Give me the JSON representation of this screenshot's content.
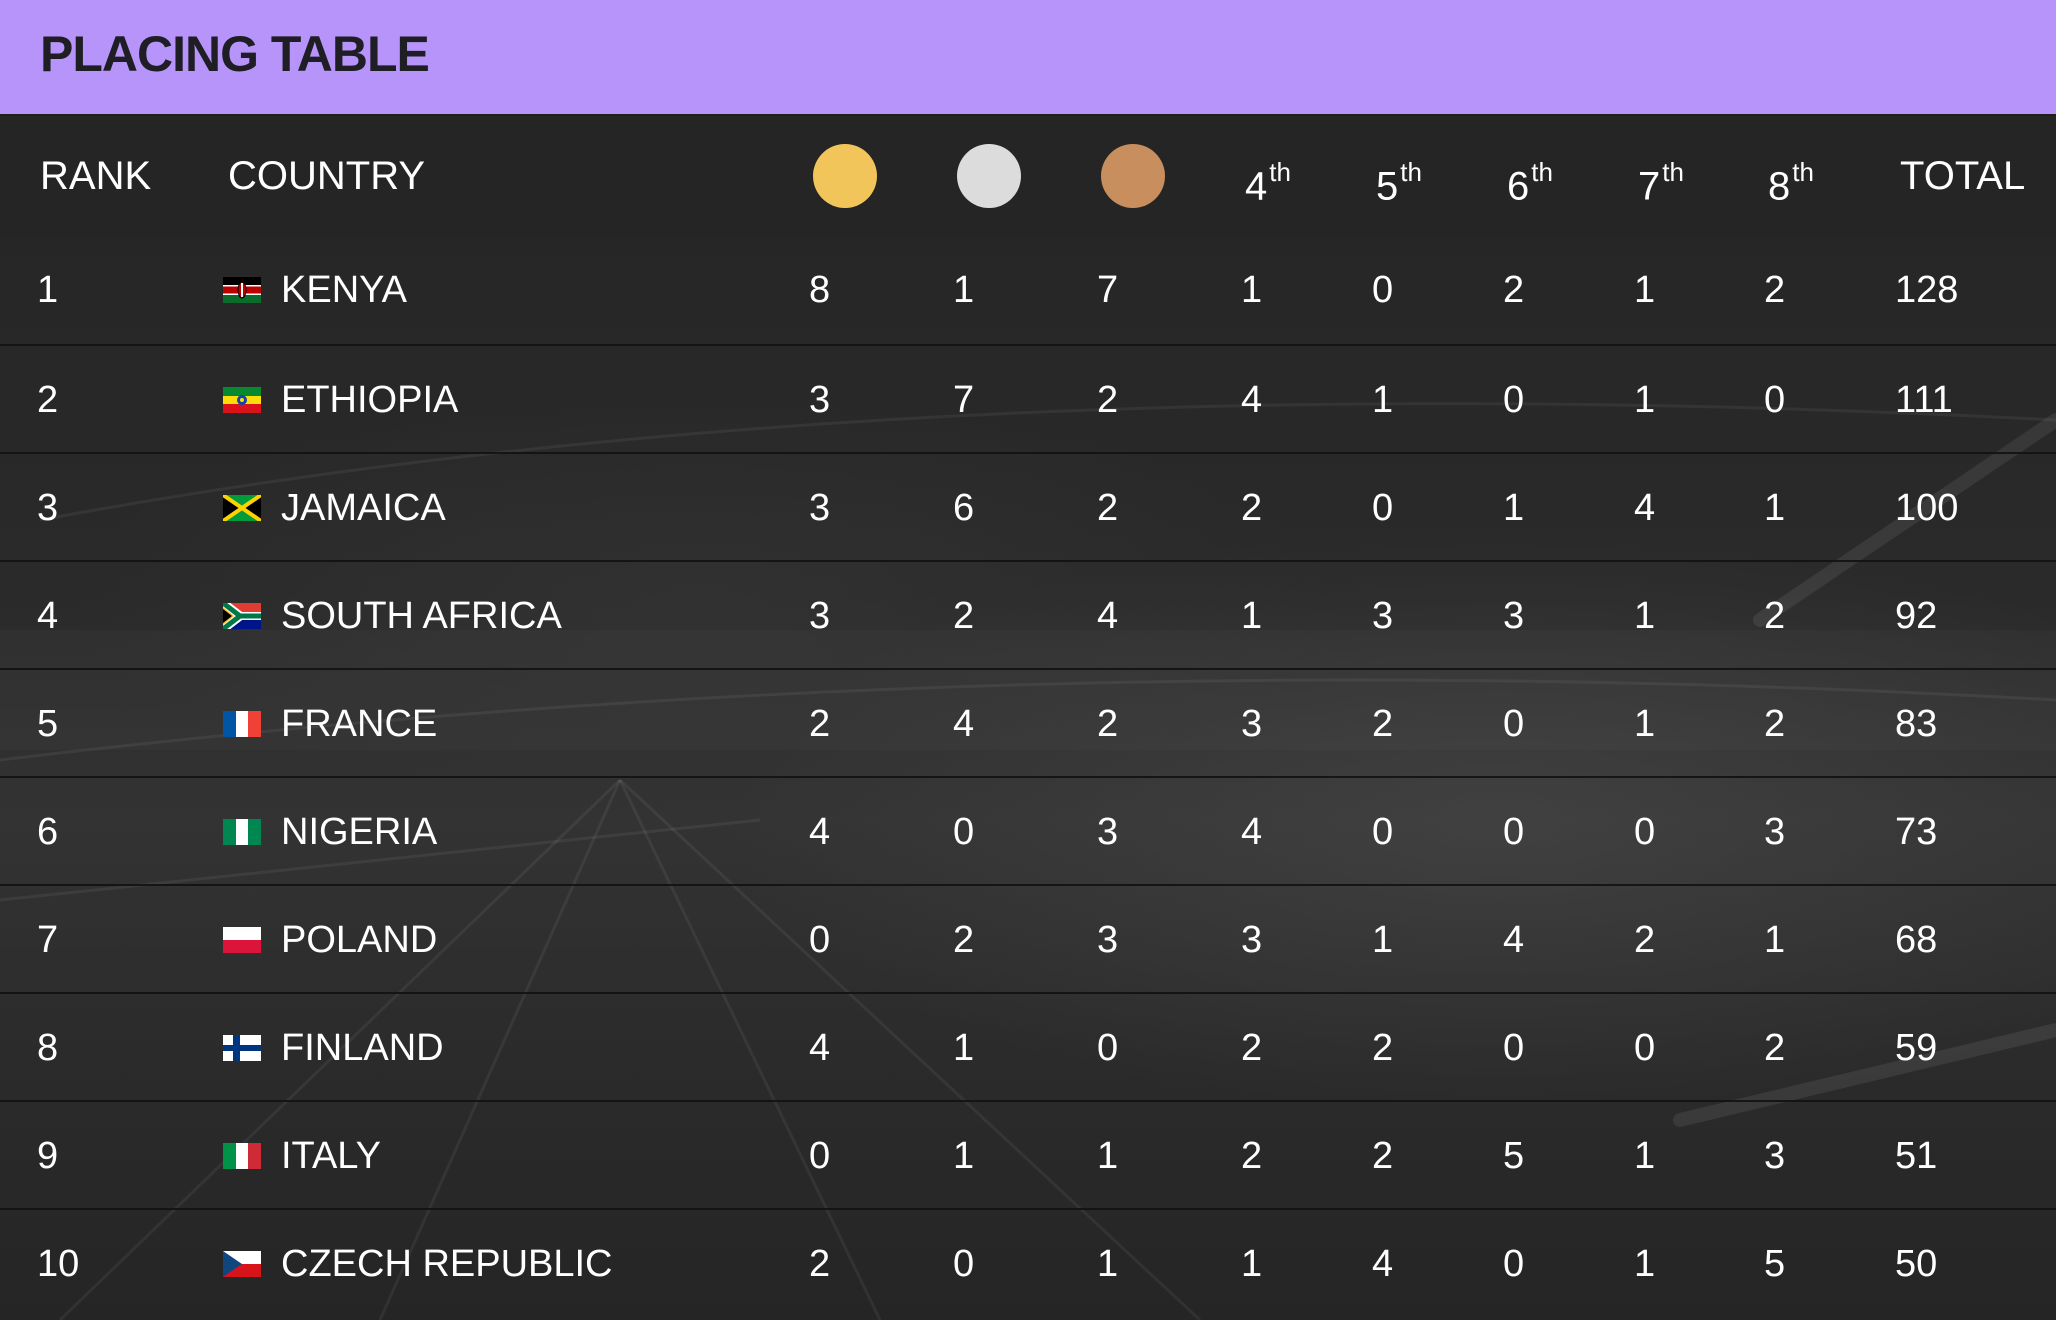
{
  "header": {
    "title": "PLACING TABLE",
    "background_color": "#b794fa"
  },
  "columns": {
    "rank": "RANK",
    "country": "COUNTRY",
    "gold_icon": "gold-medal-icon",
    "silver_icon": "silver-medal-icon",
    "bronze_icon": "bronze-medal-icon",
    "gold_color": "#f2c55b",
    "silver_color": "#dcdcdc",
    "bronze_color": "#c98e5d",
    "p4": {
      "num": "4",
      "suffix": "th"
    },
    "p5": {
      "num": "5",
      "suffix": "th"
    },
    "p6": {
      "num": "6",
      "suffix": "th"
    },
    "p7": {
      "num": "7",
      "suffix": "th"
    },
    "p8": {
      "num": "8",
      "suffix": "th"
    },
    "total": "TOTAL"
  },
  "rows": [
    {
      "rank": "1",
      "country": "KENYA",
      "flag": "kenya-flag-icon",
      "gold": "8",
      "silver": "1",
      "bronze": "7",
      "p4": "1",
      "p5": "0",
      "p6": "2",
      "p7": "1",
      "p8": "2",
      "total": "128"
    },
    {
      "rank": "2",
      "country": "ETHIOPIA",
      "flag": "ethiopia-flag-icon",
      "gold": "3",
      "silver": "7",
      "bronze": "2",
      "p4": "4",
      "p5": "1",
      "p6": "0",
      "p7": "1",
      "p8": "0",
      "total": "111"
    },
    {
      "rank": "3",
      "country": "JAMAICA",
      "flag": "jamaica-flag-icon",
      "gold": "3",
      "silver": "6",
      "bronze": "2",
      "p4": "2",
      "p5": "0",
      "p6": "1",
      "p7": "4",
      "p8": "1",
      "total": "100"
    },
    {
      "rank": "4",
      "country": "SOUTH AFRICA",
      "flag": "south-africa-flag-icon",
      "gold": "3",
      "silver": "2",
      "bronze": "4",
      "p4": "1",
      "p5": "3",
      "p6": "3",
      "p7": "1",
      "p8": "2",
      "total": "92"
    },
    {
      "rank": "5",
      "country": "FRANCE",
      "flag": "france-flag-icon",
      "gold": "2",
      "silver": "4",
      "bronze": "2",
      "p4": "3",
      "p5": "2",
      "p6": "0",
      "p7": "1",
      "p8": "2",
      "total": "83"
    },
    {
      "rank": "6",
      "country": "NIGERIA",
      "flag": "nigeria-flag-icon",
      "gold": "4",
      "silver": "0",
      "bronze": "3",
      "p4": "4",
      "p5": "0",
      "p6": "0",
      "p7": "0",
      "p8": "3",
      "total": "73"
    },
    {
      "rank": "7",
      "country": "POLAND",
      "flag": "poland-flag-icon",
      "gold": "0",
      "silver": "2",
      "bronze": "3",
      "p4": "3",
      "p5": "1",
      "p6": "4",
      "p7": "2",
      "p8": "1",
      "total": "68"
    },
    {
      "rank": "8",
      "country": "FINLAND",
      "flag": "finland-flag-icon",
      "gold": "4",
      "silver": "1",
      "bronze": "0",
      "p4": "2",
      "p5": "2",
      "p6": "0",
      "p7": "0",
      "p8": "2",
      "total": "59"
    },
    {
      "rank": "9",
      "country": "ITALY",
      "flag": "italy-flag-icon",
      "gold": "0",
      "silver": "1",
      "bronze": "1",
      "p4": "2",
      "p5": "2",
      "p6": "5",
      "p7": "1",
      "p8": "3",
      "total": "51"
    },
    {
      "rank": "10",
      "country": "CZECH REPUBLIC",
      "flag": "czech-republic-flag-icon",
      "gold": "2",
      "silver": "0",
      "bronze": "1",
      "p4": "1",
      "p5": "4",
      "p6": "0",
      "p7": "1",
      "p8": "5",
      "total": "50"
    }
  ]
}
